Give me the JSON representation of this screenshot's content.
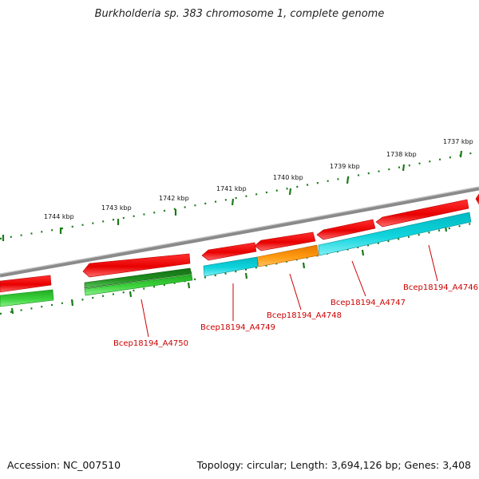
{
  "title": "Burkholderia sp. 383 chromosome 1, complete genome",
  "footer": {
    "accession": "Accession: NC_007510",
    "summary": "Topology: circular; Length: 3,694,126 bp; Genes: 3,408"
  },
  "ticks": [
    {
      "label": "1737 kbp"
    },
    {
      "label": "1738 kbp"
    },
    {
      "label": "1739 kbp"
    },
    {
      "label": "1740 kbp"
    },
    {
      "label": "1741 kbp"
    },
    {
      "label": "1742 kbp"
    },
    {
      "label": "1743 kbp"
    },
    {
      "label": "1744 kbp"
    }
  ],
  "genes": [
    {
      "label": "Bcep18194_A4746"
    },
    {
      "label": "Bcep18194_A4747"
    },
    {
      "label": "Bcep18194_A4748"
    },
    {
      "label": "Bcep18194_A4749"
    },
    {
      "label": "Bcep18194_A4750"
    }
  ],
  "colors": {
    "cds_forward": "#ff0000",
    "cds_reverse_cyan": "#00c8d0",
    "cds_reverse_orange": "#ff8c00",
    "cds_reverse_green": "#33cc33",
    "cds_reverse_darkgreen": "#1e8a1e",
    "backbone": "#808080",
    "tick": "#1a7a1a",
    "gene_label": "#cc0000"
  }
}
